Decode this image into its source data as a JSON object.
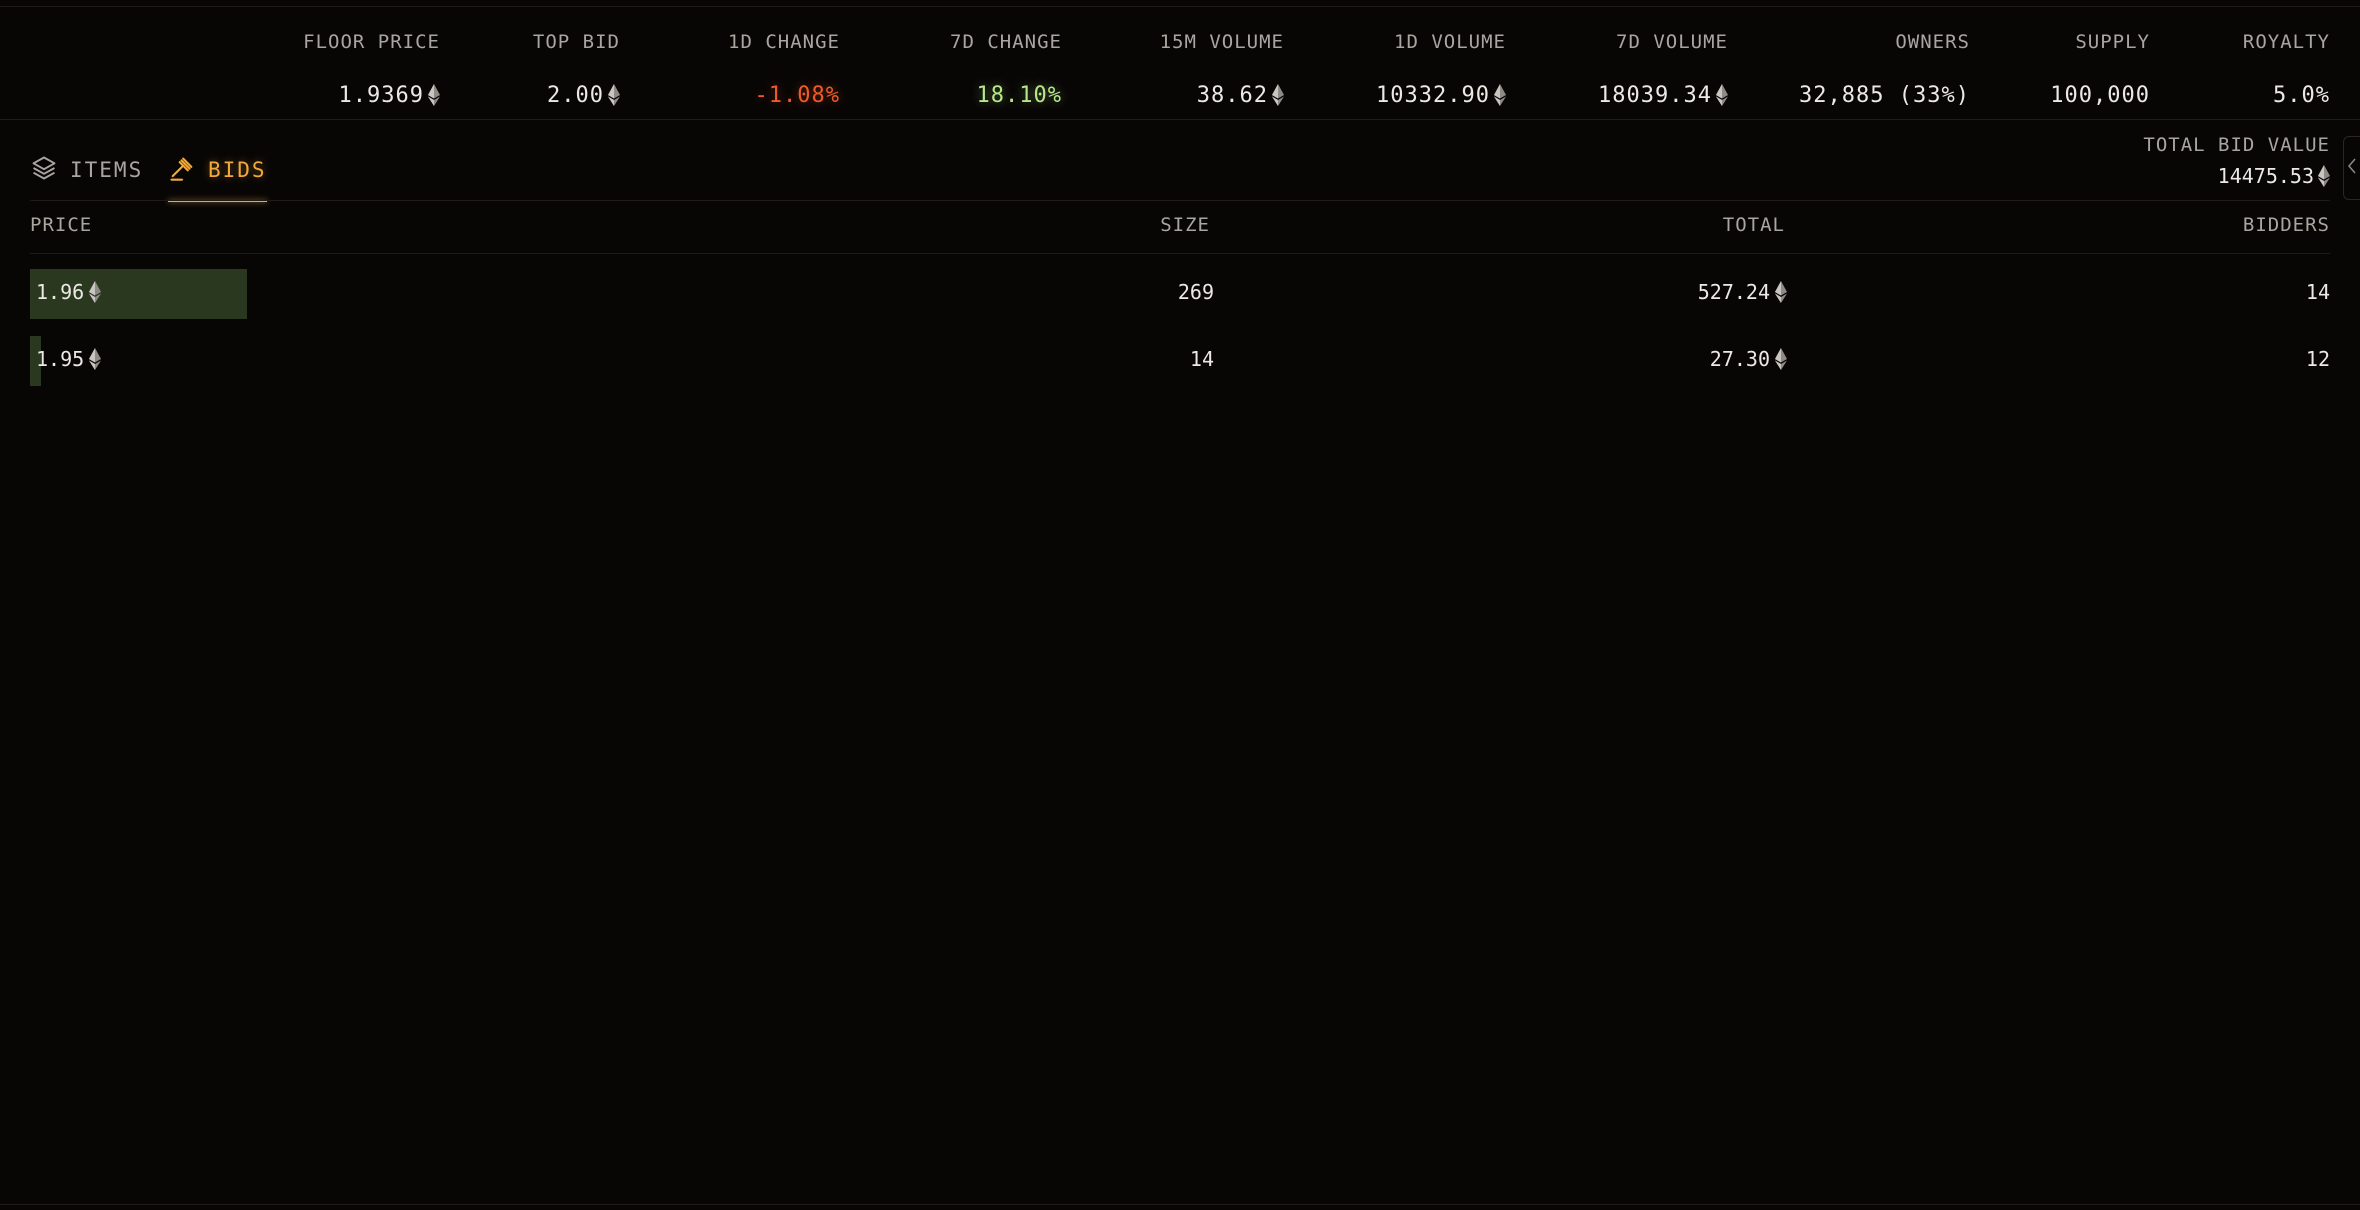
{
  "stats": [
    {
      "label": "FLOOR PRICE",
      "value": "1.9369",
      "eth": true,
      "tone": "normal"
    },
    {
      "label": "TOP BID",
      "value": "2.00",
      "eth": true,
      "tone": "normal"
    },
    {
      "label": "1D CHANGE",
      "value": "-1.08%",
      "eth": false,
      "tone": "negative"
    },
    {
      "label": "7D CHANGE",
      "value": "18.10%",
      "eth": false,
      "tone": "positive"
    },
    {
      "label": "15M VOLUME",
      "value": "38.62",
      "eth": true,
      "tone": "normal"
    },
    {
      "label": "1D VOLUME",
      "value": "10332.90",
      "eth": true,
      "tone": "normal"
    },
    {
      "label": "7D VOLUME",
      "value": "18039.34",
      "eth": true,
      "tone": "normal"
    },
    {
      "label": "OWNERS",
      "value": "32,885 (33%)",
      "eth": false,
      "tone": "normal"
    },
    {
      "label": "SUPPLY",
      "value": "100,000",
      "eth": false,
      "tone": "normal"
    },
    {
      "label": "ROYALTY",
      "value": "5.0%",
      "eth": false,
      "tone": "normal"
    }
  ],
  "tabs": {
    "items_label": "ITEMS",
    "bids_label": "BIDS",
    "active": "bids"
  },
  "total_bid_value": {
    "label": "TOTAL BID VALUE",
    "value": "14475.53"
  },
  "table": {
    "columns": {
      "price": "PRICE",
      "size": "SIZE",
      "total": "TOTAL",
      "bidders": "BIDDERS"
    },
    "rows": [
      {
        "price": "1.96",
        "size": "269",
        "total": "527.24",
        "bidders": "14",
        "depth": 269
      },
      {
        "price": "1.95",
        "size": "14",
        "total": "27.30",
        "bidders": "12",
        "depth": 14
      }
    ]
  },
  "colors": {
    "accent": "#f2a93b",
    "bar": "#2b3820",
    "negative": "#f05a2a",
    "positive": "#b7e78a",
    "background": "#080605"
  },
  "icons": {
    "currency": "eth-icon",
    "items": "layers-icon",
    "bids": "gavel-icon",
    "handle": "chevron-left-icon"
  }
}
